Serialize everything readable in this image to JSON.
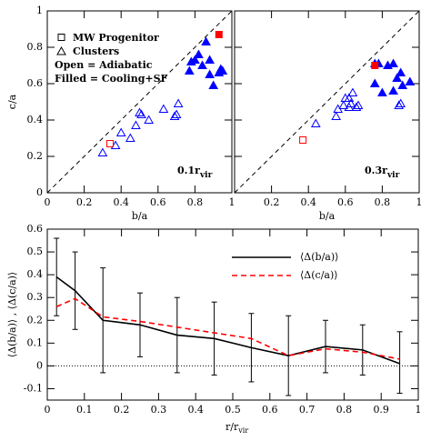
{
  "chart_data": [
    {
      "type": "scatter",
      "xlabel": "b/a",
      "ylabel": "c/a",
      "xlim": [
        0,
        1
      ],
      "ylim": [
        0,
        1
      ],
      "xticks": [
        0,
        0.2,
        0.4,
        0.6,
        0.8,
        1
      ],
      "yticks": [
        0,
        0.2,
        0.4,
        0.6,
        0.8,
        1
      ],
      "diagonal": true,
      "annotation": {
        "text": "0.1r",
        "sub": "vir"
      },
      "legend": [
        {
          "marker": "square",
          "label": "MW Progenitor"
        },
        {
          "marker": "triangle",
          "label": "Clusters"
        },
        {
          "label": "Open = Adiabatic"
        },
        {
          "label": "Filled = Cooling+SF"
        }
      ],
      "series": [
        {
          "marker": "triangle",
          "filled": false,
          "color": "#0000ff",
          "x": [
            0.3,
            0.37,
            0.4,
            0.45,
            0.48,
            0.5,
            0.51,
            0.55,
            0.63,
            0.69,
            0.7,
            0.71
          ],
          "y": [
            0.22,
            0.26,
            0.33,
            0.3,
            0.37,
            0.44,
            0.43,
            0.4,
            0.46,
            0.42,
            0.43,
            0.49
          ]
        },
        {
          "marker": "square",
          "filled": false,
          "color": "#ff0000",
          "x": [
            0.34
          ],
          "y": [
            0.27
          ]
        },
        {
          "marker": "triangle",
          "filled": true,
          "color": "#0000ff",
          "x": [
            0.77,
            0.78,
            0.8,
            0.82,
            0.84,
            0.86,
            0.88,
            0.88,
            0.9,
            0.93,
            0.94,
            0.95
          ],
          "y": [
            0.67,
            0.72,
            0.73,
            0.76,
            0.7,
            0.83,
            0.65,
            0.73,
            0.59,
            0.66,
            0.68,
            0.67
          ]
        },
        {
          "marker": "square",
          "filled": true,
          "color": "#ff0000",
          "x": [
            0.93
          ],
          "y": [
            0.87
          ]
        }
      ]
    },
    {
      "type": "scatter",
      "xlabel": "b/a",
      "xlim": [
        0,
        1
      ],
      "ylim": [
        0,
        1
      ],
      "xticks": [
        0.2,
        0.4,
        0.6,
        0.8,
        1
      ],
      "yticks": [
        0,
        0.2,
        0.4,
        0.6,
        0.8,
        1
      ],
      "ytick_labels": false,
      "diagonal": true,
      "annotation": {
        "text": "0.3r",
        "sub": "vir"
      },
      "series": [
        {
          "marker": "triangle",
          "filled": false,
          "color": "#0000ff",
          "x": [
            0.44,
            0.55,
            0.56,
            0.59,
            0.6,
            0.62,
            0.63,
            0.62,
            0.66,
            0.67,
            0.64,
            0.89,
            0.9
          ],
          "y": [
            0.38,
            0.42,
            0.46,
            0.48,
            0.52,
            0.52,
            0.49,
            0.47,
            0.47,
            0.48,
            0.55,
            0.48,
            0.49
          ]
        },
        {
          "marker": "square",
          "filled": false,
          "color": "#ff0000",
          "x": [
            0.37
          ],
          "y": [
            0.29
          ]
        },
        {
          "marker": "triangle",
          "filled": true,
          "color": "#0000ff",
          "x": [
            0.76,
            0.78,
            0.83,
            0.86,
            0.88,
            0.9,
            0.91,
            0.95,
            0.76,
            0.86,
            0.8
          ],
          "y": [
            0.6,
            0.71,
            0.7,
            0.71,
            0.63,
            0.66,
            0.59,
            0.61,
            0.71,
            0.56,
            0.55
          ]
        },
        {
          "marker": "square",
          "filled": true,
          "color": "#ff0000",
          "x": [
            0.76
          ],
          "y": [
            0.7
          ]
        }
      ]
    },
    {
      "type": "line",
      "xlabel": {
        "text": "r/r",
        "sub": "vir"
      },
      "ylabel": "⟨Δ(b/a)⟩ , ⟨Δ(c/a)⟩",
      "xlim": [
        0,
        1
      ],
      "ylim": [
        -0.15,
        0.6
      ],
      "xticks": [
        0,
        0.1,
        0.2,
        0.3,
        0.4,
        0.5,
        0.6,
        0.7,
        0.8,
        0.9,
        1
      ],
      "yticks": [
        -0.1,
        0,
        0.1,
        0.2,
        0.3,
        0.4,
        0.5,
        0.6
      ],
      "hline": 0,
      "legend_position": "upper right",
      "x": [
        0.025,
        0.075,
        0.15,
        0.25,
        0.35,
        0.45,
        0.55,
        0.65,
        0.75,
        0.85,
        0.95
      ],
      "series": [
        {
          "name": "⟨Δ(b/a)⟩",
          "color": "#000000",
          "dash": false,
          "values": [
            0.39,
            0.33,
            0.2,
            0.18,
            0.135,
            0.12,
            0.08,
            0.045,
            0.085,
            0.07,
            0.01
          ],
          "lower": [
            0.22,
            0.16,
            -0.03,
            0.04,
            -0.03,
            -0.04,
            -0.07,
            -0.13,
            -0.03,
            -0.04,
            -0.12
          ],
          "upper": [
            0.56,
            0.5,
            0.43,
            0.32,
            0.3,
            0.28,
            0.23,
            0.22,
            0.2,
            0.18,
            0.15
          ]
        },
        {
          "name": "⟨Δ(c/a)⟩",
          "color": "#ff0000",
          "dash": true,
          "values": [
            0.26,
            0.295,
            0.215,
            0.195,
            0.17,
            0.145,
            0.12,
            0.045,
            0.075,
            0.06,
            0.03
          ]
        }
      ]
    }
  ]
}
